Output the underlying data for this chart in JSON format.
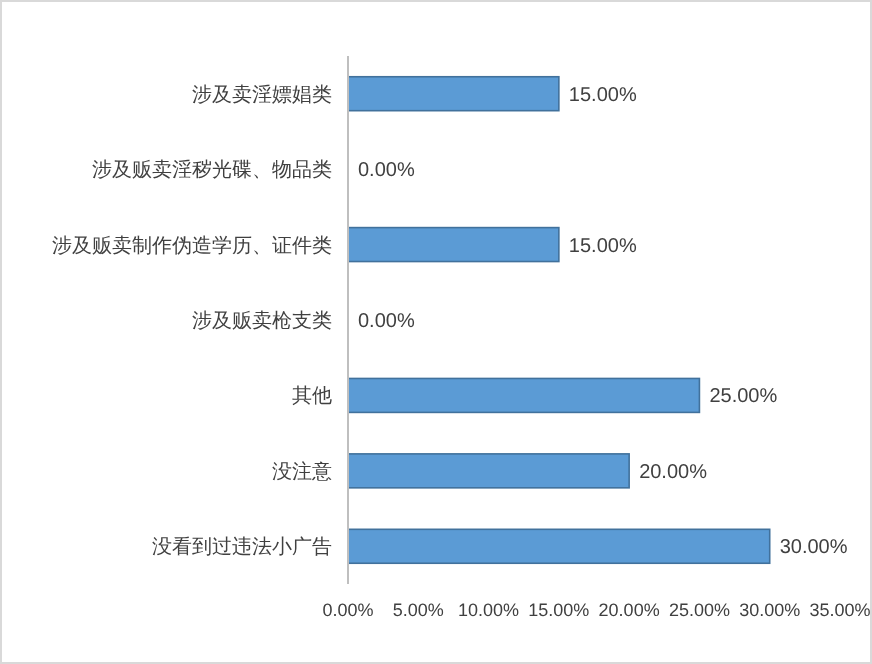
{
  "chart_data": {
    "type": "bar",
    "orientation": "horizontal",
    "categories": [
      "涉及卖淫嫖娼类",
      "涉及贩卖淫秽光碟、物品类",
      "涉及贩卖制作伪造学历、证件类",
      "涉及贩卖枪支类",
      "其他",
      "没注意",
      "没看到过违法小广告"
    ],
    "values": [
      15,
      0,
      15,
      0,
      25,
      20,
      30
    ],
    "value_labels": [
      "15.00%",
      "0.00%",
      "15.00%",
      "0.00%",
      "25.00%",
      "20.00%",
      "30.00%"
    ],
    "color": "#5b9bd5",
    "xlim": [
      0,
      35
    ],
    "xticks": [
      {
        "value": 0,
        "label": "0.00%"
      },
      {
        "value": 5,
        "label": "5.00%"
      },
      {
        "value": 10,
        "label": "10.00%"
      },
      {
        "value": 15,
        "label": "15.00%"
      },
      {
        "value": 20,
        "label": "20.00%"
      },
      {
        "value": 25,
        "label": "25.00%"
      },
      {
        "value": 30,
        "label": "30.00%"
      },
      {
        "value": 35,
        "label": "35.00%"
      }
    ],
    "grid": false
  }
}
